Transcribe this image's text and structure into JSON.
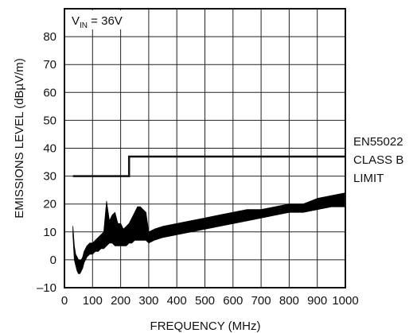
{
  "chart_data": {
    "type": "line",
    "title": "",
    "xlabel": "FREQUENCY (MHz)",
    "ylabel": "EMISSIONS LEVEL (dBµV/m)",
    "xlim": [
      0,
      1000
    ],
    "ylim": [
      -10,
      90
    ],
    "x_ticks": [
      0,
      100,
      200,
      300,
      400,
      500,
      600,
      700,
      800,
      900,
      1000
    ],
    "x_tick_labels": [
      "0",
      "100",
      "200",
      "300",
      "400",
      "500",
      "600",
      "700",
      "800",
      "900",
      "1000"
    ],
    "y_ticks": [
      -10,
      0,
      10,
      20,
      30,
      40,
      50,
      60,
      70,
      80
    ],
    "y_tick_labels": [
      "–10",
      "0",
      "10",
      "20",
      "30",
      "40",
      "50",
      "60",
      "70",
      "80"
    ],
    "grid": true,
    "condition_label": {
      "main": "V",
      "subscript": "IN",
      "rest": " = 36V"
    },
    "limit_label": [
      "EN55022",
      "CLASS B",
      "LIMIT"
    ],
    "series": [
      {
        "name": "EN55022 CLASS B LIMIT",
        "style": "step",
        "color": "#111111",
        "x": [
          30,
          230,
          230,
          1000
        ],
        "y": [
          30,
          30,
          37,
          37
        ]
      },
      {
        "style": "band",
        "color": "#000000",
        "x": [
          30,
          35,
          40,
          45,
          50,
          55,
          60,
          65,
          70,
          80,
          90,
          100,
          110,
          120,
          130,
          140,
          150,
          160,
          170,
          180,
          190,
          200,
          210,
          220,
          230,
          240,
          250,
          260,
          270,
          280,
          290,
          300,
          320,
          350,
          400,
          450,
          500,
          550,
          600,
          650,
          700,
          750,
          800,
          850,
          900,
          950,
          1000
        ],
        "upper": [
          12,
          5,
          2,
          1,
          0,
          0,
          0,
          1,
          3,
          5,
          6,
          6,
          7,
          8,
          9,
          10,
          21,
          14,
          16,
          17,
          13,
          13,
          11,
          12,
          13,
          15,
          17,
          19,
          19,
          18,
          17,
          10,
          11,
          12,
          13,
          14,
          15,
          16,
          17,
          18,
          18,
          19,
          20,
          20,
          22,
          23,
          24
        ],
        "lower": [
          9,
          0,
          -2,
          -4,
          -5,
          -5,
          -4,
          -3,
          -1,
          1,
          2,
          2,
          3,
          3,
          4,
          4,
          5,
          6,
          6,
          5,
          5,
          5,
          5,
          5,
          6,
          6,
          7,
          7,
          7,
          7,
          7,
          6,
          7,
          8,
          9,
          10,
          11,
          12,
          13,
          14,
          15,
          16,
          17,
          17,
          18,
          19,
          19
        ]
      }
    ]
  }
}
